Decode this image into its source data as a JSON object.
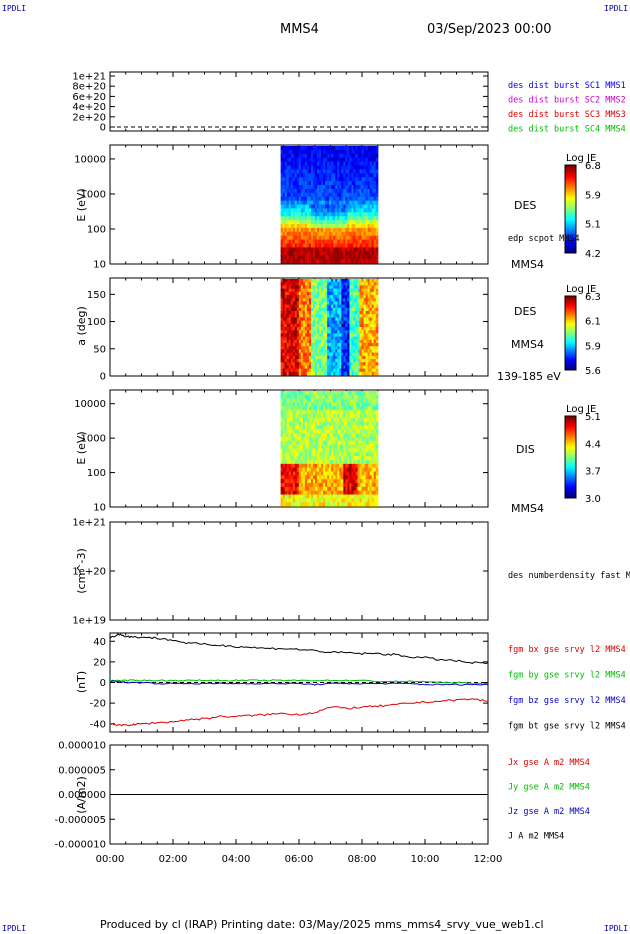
{
  "corners": {
    "tl": "IPDLI",
    "tr": "IPDLI",
    "bl": "IPDLI",
    "br": "IPDLI"
  },
  "header": {
    "spacecraft": "MMS4",
    "datetime": "03/Sep/2023 00:00"
  },
  "footer": {
    "text": "Produced by cl (IRAP)   Printing date: 03/May/2025   mms_mms4_srvy_vue_web1.cl"
  },
  "colors": {
    "mms1": "#0000ff",
    "mms2": "#cc00cc",
    "mms3": "#dd0000",
    "mms4": "#00bb00",
    "bx": "#dd0000",
    "by": "#00bb00",
    "bz": "#0000cc",
    "bt": "#000000"
  },
  "chart_data": [
    {
      "type": "line",
      "panel": "availability",
      "x_range": [
        "00:00",
        "12:00"
      ],
      "ytick_labels": [
        "0",
        "2e+20",
        "4e+20",
        "6e+20",
        "8e+20",
        "1e+21"
      ],
      "legend": [
        "des dist burst SC1 MMS1",
        "des dist burst SC2 MMS2",
        "des dist burst SC3 MMS3",
        "des dist burst SC4 MMS4"
      ]
    },
    {
      "type": "heatmap",
      "panel": "des-energy",
      "ylabel": "E (eV)",
      "yscale": "log",
      "ylim": [
        10,
        25000
      ],
      "ytick_labels": [
        "10",
        "100",
        "1000",
        "10000"
      ],
      "data_interval": [
        "05:25",
        "08:30"
      ],
      "labels": [
        "DES",
        "edp scpot MMS4",
        "MMS4"
      ],
      "colorbar": {
        "title": "Log JE",
        "min": 4.2,
        "max": 6.8,
        "tick_labels": [
          "6.8",
          "5.9",
          "5.1",
          "4.2"
        ]
      }
    },
    {
      "type": "heatmap",
      "panel": "des-pitch",
      "ylabel": "a (deg)",
      "ylim": [
        0,
        180
      ],
      "ytick_labels": [
        "0",
        "50",
        "100",
        "150"
      ],
      "data_interval": [
        "05:25",
        "08:30"
      ],
      "labels": [
        "DES",
        "MMS4",
        "139-185 eV"
      ],
      "colorbar": {
        "title": "Log JE",
        "min": 5.6,
        "max": 6.3,
        "tick_labels": [
          "6.3",
          "6.1",
          "5.9",
          "5.6"
        ]
      }
    },
    {
      "type": "heatmap",
      "panel": "dis-energy",
      "ylabel": "E (eV)",
      "yscale": "log",
      "ylim": [
        10,
        25000
      ],
      "ytick_labels": [
        "10",
        "100",
        "1000",
        "10000"
      ],
      "data_interval": [
        "05:25",
        "08:30"
      ],
      "labels": [
        "DIS",
        "MMS4"
      ],
      "colorbar": {
        "title": "Log JE",
        "min": 3.0,
        "max": 5.1,
        "tick_labels": [
          "5.1",
          "4.4",
          "3.7",
          "3.0"
        ]
      }
    },
    {
      "type": "line",
      "panel": "density",
      "ylabel": "(cm^-3)",
      "yscale": "log",
      "ytick_labels": [
        "1e+19",
        "1e+20",
        "1e+21"
      ],
      "legend": [
        "des numberdensity fast M"
      ]
    },
    {
      "type": "line",
      "panel": "magnetic-field",
      "ylabel": "(nT)",
      "ylim": [
        -48,
        48
      ],
      "ytick_labels": [
        "-40",
        "-20",
        "0",
        "20",
        "40"
      ],
      "x_hours": [
        0,
        0.25,
        0.5,
        0.75,
        1,
        1.5,
        2,
        2.5,
        3,
        3.5,
        4,
        4.5,
        5,
        5.5,
        6,
        6.5,
        7,
        7.5,
        8,
        8.5,
        9,
        9.5,
        10,
        10.5,
        11,
        11.5,
        12
      ],
      "series": [
        {
          "name": "fgm bx gse srvy l2 MMS4",
          "color": "bx",
          "values": [
            -39,
            -42,
            -41,
            -41,
            -40,
            -39,
            -38,
            -36,
            -35,
            -33,
            -33,
            -32,
            -31,
            -30,
            -31,
            -29,
            -24,
            -25,
            -24,
            -23,
            -22,
            -20,
            -19,
            -18,
            -17,
            -16,
            -18
          ]
        },
        {
          "name": "fgm by gse srvy l2 MMS4",
          "color": "by",
          "values": [
            2,
            2,
            2,
            2,
            2,
            2,
            2,
            2,
            2,
            2,
            2,
            2,
            2,
            2,
            2,
            2,
            2,
            2,
            2,
            1,
            1,
            1,
            1,
            0,
            0,
            -1,
            -1
          ]
        },
        {
          "name": "fgm bz gse srvy l2 MMS4",
          "color": "bz",
          "values": [
            1,
            1,
            0,
            0,
            0,
            -1,
            -1,
            -1,
            -1,
            -1,
            -1,
            -1,
            -1,
            -1,
            -1,
            -2,
            -1,
            -1,
            -1,
            -1,
            -1,
            -1,
            -2,
            -2,
            -2,
            -2,
            -2
          ]
        },
        {
          "name": "fgm bt gse srvy l2 MMS4",
          "color": "bt",
          "values": [
            43,
            47,
            45,
            44,
            44,
            43,
            41,
            38,
            37,
            36,
            35,
            34,
            33,
            33,
            32,
            31,
            29,
            29,
            28,
            28,
            27,
            25,
            24,
            22,
            21,
            19,
            19
          ]
        }
      ]
    },
    {
      "type": "line",
      "panel": "current",
      "ylabel": "(A/m2)",
      "ylim": [
        -1e-05,
        1e-05
      ],
      "ytick_labels": [
        "-0.000010",
        "-0.000005",
        "0.000000",
        "0.000005",
        "0.000010"
      ],
      "legend": [
        "Jx gse A m2 MMS4",
        "Jy gse A m2 MMS4",
        "Jz gse A m2 MMS4",
        "J A m2 MMS4"
      ]
    }
  ],
  "x_axis": {
    "tick_labels": [
      "00:00",
      "02:00",
      "04:00",
      "06:00",
      "08:00",
      "10:00",
      "12:00"
    ]
  }
}
